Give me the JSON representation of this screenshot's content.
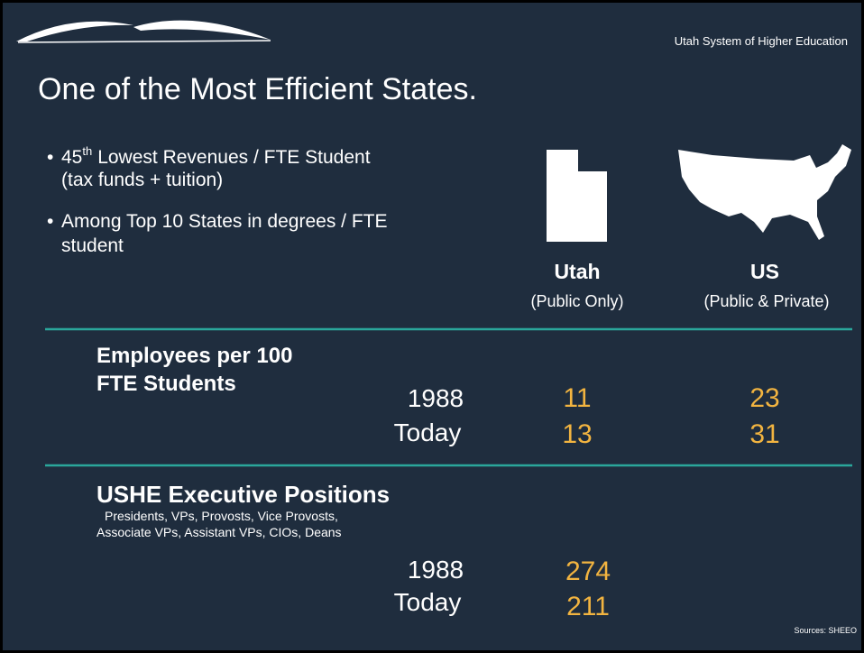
{
  "header": {
    "org": "Utah System of Higher Education"
  },
  "title": "One of the Most Efficient States.",
  "bullets": [
    {
      "number": "45",
      "suffix": "th",
      "lines": [
        "Lowest Revenues / FTE Student",
        "(tax funds + tuition)"
      ]
    },
    {
      "lines": [
        "Among Top 10 States in degrees / FTE",
        "student"
      ]
    }
  ],
  "columns": [
    {
      "name": "Utah",
      "note": "(Public Only)"
    },
    {
      "name": "US",
      "note": "(Public & Private)"
    }
  ],
  "employees": {
    "title_lines": [
      "Employees per 100",
      "FTE Students"
    ],
    "rows": [
      {
        "label": "1988",
        "utah": 11,
        "us": 23
      },
      {
        "label": "Today",
        "utah": 13,
        "us": 31
      }
    ]
  },
  "executives": {
    "title": "USHE Executive Positions",
    "subtitle_lines": [
      "Presidents, VPs, Provosts, Vice Provosts,",
      "Associate VPs, Assistant VPs, CIOs, Deans"
    ],
    "rows": [
      {
        "label": "1988",
        "utah": 274
      },
      {
        "label": "Today",
        "utah": 211
      }
    ]
  },
  "source": "Sources: SHEEO"
}
